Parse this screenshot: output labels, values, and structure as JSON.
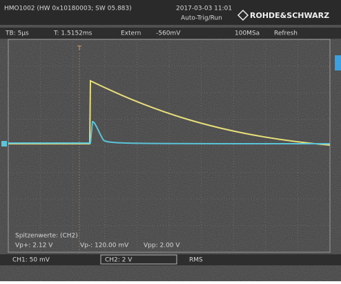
{
  "header": {
    "device": "HMO1002 (HW 0x10180003; SW 05.883)",
    "date": "2017-03-03 11:01",
    "mode": "Auto-Trig/Run",
    "brand": "ROHDE&SCHWARZ"
  },
  "status": {
    "timebase": "TB: 5µs",
    "trigger_time": "T: 1.5152ms",
    "trigger_source": "Extern",
    "trigger_level": "-560mV",
    "sample_rate": "100MSa",
    "acquire": "Refresh"
  },
  "measurements": {
    "title": "Spitzenwerte: (CH2)",
    "items": [
      "Vp+: 2.12 V",
      "Vp-: 120.00 mV",
      "Vpp: 2.00 V"
    ]
  },
  "channels": [
    "CH1: 50 mV",
    "CH2: 2 V",
    "RMS"
  ]
}
